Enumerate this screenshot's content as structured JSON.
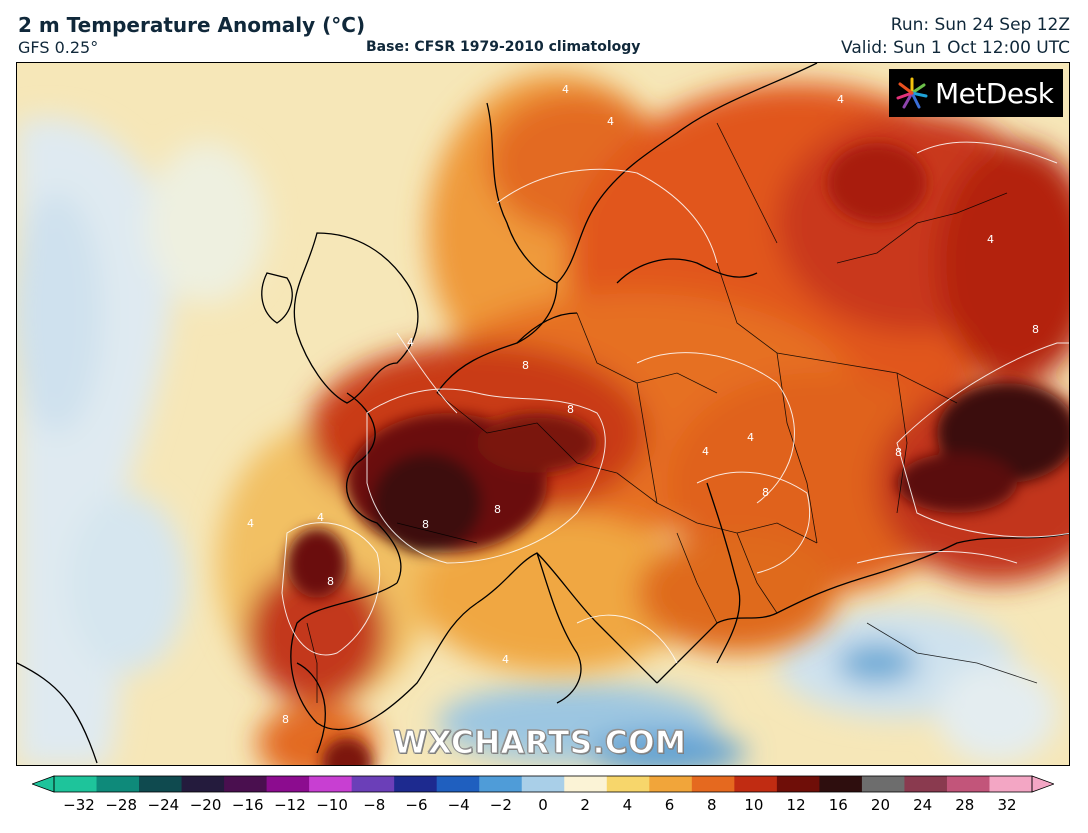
{
  "header": {
    "title": "2 m Temperature Anomaly (°C)",
    "model": "GFS 0.25°",
    "base": "Base: CFSR 1979-2010 climatology",
    "run": "Run: Sun 24 Sep 12Z",
    "valid": "Valid: Sun 1 Oct 12:00 UTC"
  },
  "logo": {
    "text": "MetDesk"
  },
  "watermark": "WXCHARTS.COM",
  "map": {
    "contour_labels": [
      "4",
      "4",
      "4",
      "8",
      "8",
      "8",
      "4",
      "4",
      "8",
      "8",
      "4",
      "8",
      "4",
      "8",
      "4",
      "8",
      "4",
      "4",
      "8"
    ],
    "colors": {
      "ocean_cool": "#dce9f2",
      "neutral": "#fbf3d6",
      "warm_light": "#f7c866",
      "warm": "#ec8a2a",
      "hot": "#d2451a",
      "very_hot": "#8a1608",
      "extreme": "#3a0a0a",
      "cool_blue": "#7fb6d8"
    }
  },
  "colorbar": {
    "ticks": [
      "−32",
      "−28",
      "−24",
      "−20",
      "−16",
      "−12",
      "−10",
      "−8",
      "−6",
      "−4",
      "−2",
      "0",
      "2",
      "4",
      "6",
      "8",
      "10",
      "12",
      "16",
      "20",
      "24",
      "28",
      "32"
    ],
    "colors": [
      "#1ec49b",
      "#0e8a7a",
      "#0f4a4f",
      "#241b3d",
      "#4a0f4f",
      "#8c0c8f",
      "#c83fd2",
      "#6b3fb8",
      "#1d2a8f",
      "#1f5fbf",
      "#4f9cd8",
      "#a9cfe8",
      "#fbf3d6",
      "#f7d66b",
      "#f1a53a",
      "#e5691f",
      "#c12c12",
      "#6f0e08",
      "#2e0e0e",
      "#6d6d6d",
      "#8a3a4f",
      "#c2557a",
      "#f3a6c4"
    ]
  }
}
